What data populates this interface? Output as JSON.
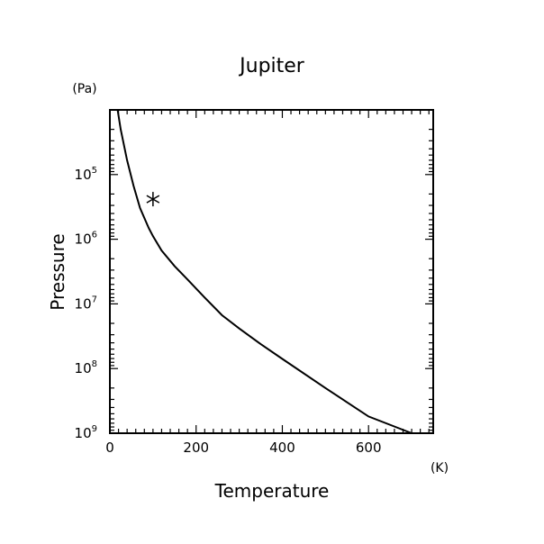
{
  "chart_data": {
    "type": "line",
    "title": "Jupiter",
    "xlabel": "Temperature",
    "ylabel": "Pressure",
    "x_unit": "(K)",
    "y_unit": "(Pa)",
    "xlim": [
      0,
      750
    ],
    "ylim": [
      1000000000.0,
      10000
    ],
    "y_scale": "log",
    "y_inverted": true,
    "grid": false,
    "x_ticks": [
      0,
      200,
      400,
      600
    ],
    "y_ticks": [
      {
        "base": "10",
        "exp": "5",
        "value": 100000
      },
      {
        "base": "10",
        "exp": "6",
        "value": 1000000
      },
      {
        "base": "10",
        "exp": "7",
        "value": 10000000
      },
      {
        "base": "10",
        "exp": "8",
        "value": 100000000
      },
      {
        "base": "10",
        "exp": "9",
        "value": 1000000000
      }
    ],
    "series": [
      {
        "x": [
          18,
          25,
          40,
          55,
          70,
          90,
          100,
          120,
          150,
          180,
          220,
          260,
          300,
          350,
          400,
          500,
          600,
          700
        ],
        "y": [
          10000,
          20000,
          60000,
          150000,
          330000,
          670000,
          900000,
          1500000,
          2600000,
          4200000,
          8000000,
          15000000,
          24000000,
          42000000,
          71000000,
          200000000,
          550000000,
          1100000000
        ]
      }
    ],
    "marker": {
      "symbol": "asterisk",
      "x": 100,
      "y": 240000
    }
  }
}
